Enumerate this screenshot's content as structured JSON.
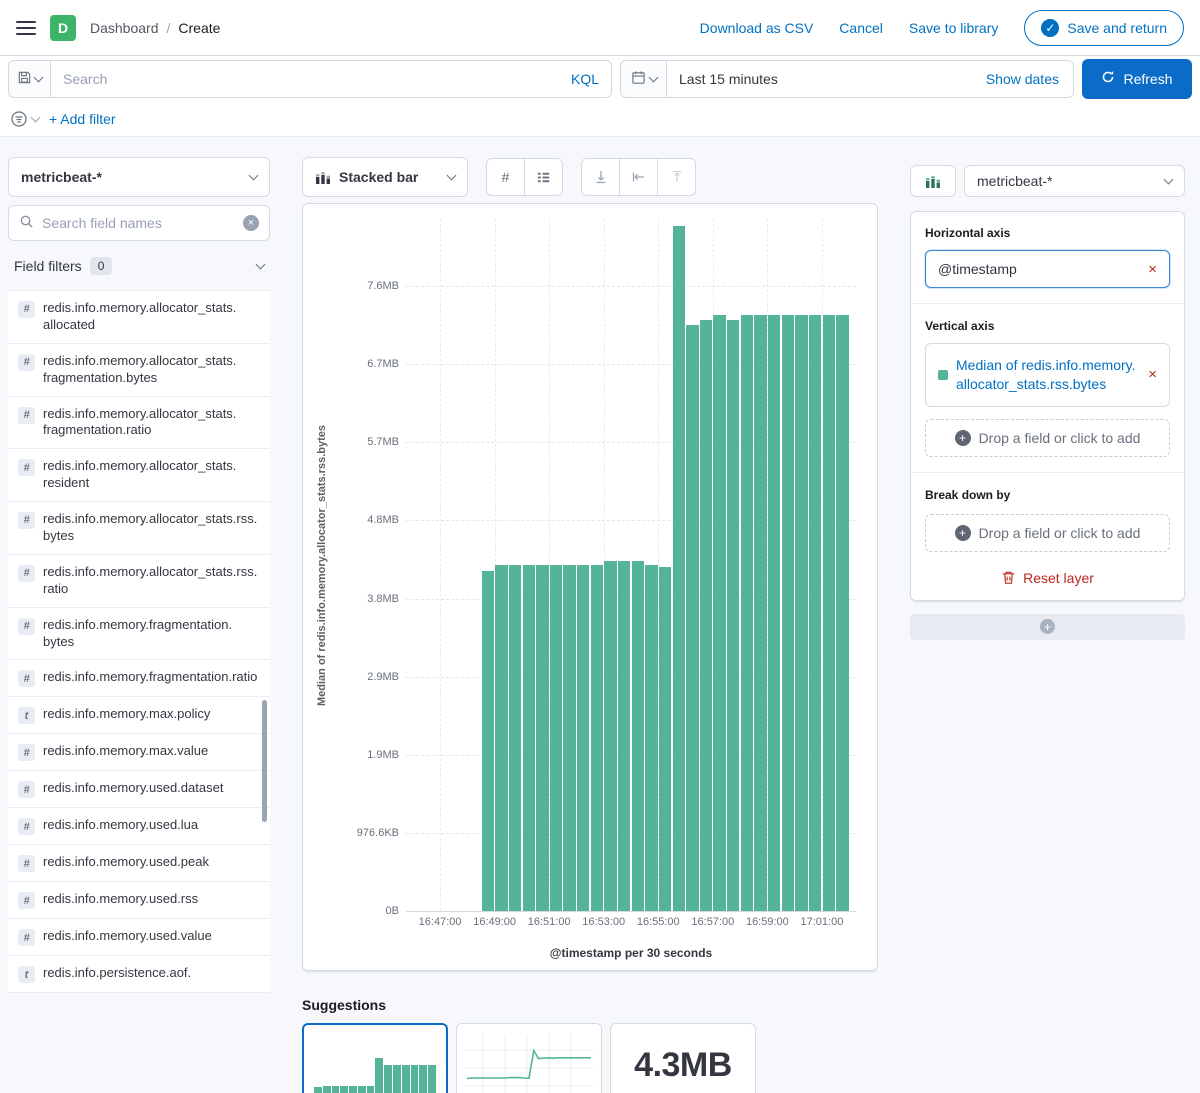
{
  "colors": {
    "accent_blue": "#0071c2",
    "bar_green": "#54b399",
    "danger_red": "#bd271e",
    "logo_green": "#3eb469"
  },
  "header": {
    "logo_letter": "D",
    "breadcrumb_root": "Dashboard",
    "breadcrumb_sep": "/",
    "breadcrumb_current": "Create",
    "download_csv": "Download as CSV",
    "cancel": "Cancel",
    "save_to_library": "Save to library",
    "save_and_return": "Save and return",
    "check_glyph": "✓"
  },
  "query_bar": {
    "search_placeholder": "Search",
    "kql": "KQL",
    "time_range": "Last 15 minutes",
    "show_dates": "Show dates",
    "refresh": "Refresh"
  },
  "filter_bar": {
    "add_filter": "+ Add filter"
  },
  "field_panel": {
    "index_pattern": "metricbeat-*",
    "search_placeholder": "Search field names",
    "clear_glyph": "×",
    "filters_label": "Field filters",
    "filters_count": "0",
    "number_icon": "#",
    "text_icon": "t",
    "fields": [
      {
        "type": "number",
        "name": "redis.info.memory.allocator_stats.allocated"
      },
      {
        "type": "number",
        "name": "redis.info.memory.allocator_stats.fragmentation.bytes"
      },
      {
        "type": "number",
        "name": "redis.info.memory.allocator_stats.fragmentation.ratio"
      },
      {
        "type": "number",
        "name": "redis.info.memory.allocator_stats.resident"
      },
      {
        "type": "number",
        "name": "redis.info.memory.allocator_stats.rss.bytes"
      },
      {
        "type": "number",
        "name": "redis.info.memory.allocator_stats.rss.ratio"
      },
      {
        "type": "number",
        "name": "redis.info.memory.fragmentation.bytes"
      },
      {
        "type": "number",
        "name": "redis.info.memory.fragmentation.ratio"
      },
      {
        "type": "text",
        "name": "redis.info.memory.max.policy"
      },
      {
        "type": "number",
        "name": "redis.info.memory.max.value"
      },
      {
        "type": "number",
        "name": "redis.info.memory.used.dataset"
      },
      {
        "type": "number",
        "name": "redis.info.memory.used.lua"
      },
      {
        "type": "number",
        "name": "redis.info.memory.used.peak"
      },
      {
        "type": "number",
        "name": "redis.info.memory.used.rss"
      },
      {
        "type": "number",
        "name": "redis.info.memory.used.value"
      },
      {
        "type": "text",
        "name": "redis.info.persistence.aof."
      }
    ]
  },
  "chart_toolbar": {
    "chart_type": "Stacked bar",
    "hash_label": "#"
  },
  "chart_data": {
    "type": "bar",
    "title": "",
    "xlabel": "@timestamp per 30 seconds",
    "ylabel": "Median of redis.info.memory.allocator_stats.rss.bytes",
    "series_name": "Median of redis.info.memory.allocator_stats.rss.bytes",
    "series_color": "#54b399",
    "legend": "off",
    "grid": "on",
    "x_ticks": [
      "16:47:00",
      "16:49:00",
      "16:51:00",
      "16:53:00",
      "16:55:00",
      "16:57:00",
      "16:59:00",
      "17:01:00"
    ],
    "y_ticks": [
      "0B",
      "976.6KB",
      "1.9MB",
      "2.9MB",
      "3.8MB",
      "4.8MB",
      "5.7MB",
      "6.7MB",
      "7.6MB"
    ],
    "x_domain": [
      "16:45:45",
      "17:02:15"
    ],
    "bar_interval_sec": 30,
    "y_tick_step_mib": 0.9537,
    "ylim_mib": [
      0,
      8.45
    ],
    "x": [
      "16:48:30",
      "16:49:00",
      "16:49:30",
      "16:50:00",
      "16:50:30",
      "16:51:00",
      "16:51:30",
      "16:52:00",
      "16:52:30",
      "16:53:00",
      "16:53:30",
      "16:54:00",
      "16:54:30",
      "16:55:00",
      "16:55:30",
      "16:56:00",
      "16:56:30",
      "16:57:00",
      "16:57:30",
      "16:58:00",
      "16:58:30",
      "16:59:00",
      "16:59:30",
      "17:00:00",
      "17:00:30",
      "17:01:00",
      "17:01:30"
    ],
    "values_mib": [
      4.15,
      4.22,
      4.22,
      4.22,
      4.22,
      4.22,
      4.22,
      4.22,
      4.22,
      4.28,
      4.28,
      4.28,
      4.22,
      4.2,
      8.36,
      7.15,
      7.22,
      7.28,
      7.22,
      7.28,
      7.28,
      7.28,
      7.28,
      7.28,
      7.28,
      7.28,
      7.28
    ]
  },
  "suggestions": {
    "title": "Suggestions",
    "metric_value": "4.3MB"
  },
  "layer_panel": {
    "index_pattern": "metricbeat-*",
    "horizontal_axis_label": "Horizontal axis",
    "horizontal_field": "@timestamp",
    "remove_glyph": "×",
    "vertical_axis_label": "Vertical axis",
    "vertical_field": "Median of redis.info.memory.allocator_stats.rss.bytes",
    "drop_hint": "Drop a field or click to add",
    "plus_glyph": "+",
    "break_down_label": "Break down by",
    "reset_layer": "Reset layer"
  }
}
